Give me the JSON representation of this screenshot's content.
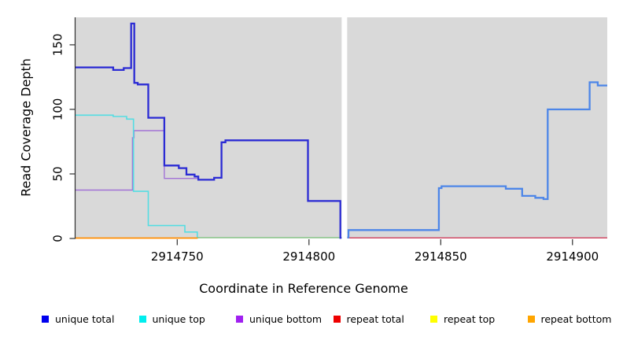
{
  "figure": {
    "background": "#ffffff",
    "plot_background": "#d9d9d9",
    "axis_color": "#2e2e2e",
    "gap_color": "#ffffff"
  },
  "chart_data": {
    "type": "line",
    "title": "",
    "xlabel": "Coordinate in Reference Genome",
    "ylabel": "Read Coverage Depth",
    "grid": false,
    "legend_position": "bottom",
    "xlim": [
      2914711.4,
      2914913.2
    ],
    "ylim": [
      0,
      171.3
    ],
    "x_ticks": [
      {
        "value": 2914750,
        "label": "2914750"
      },
      {
        "value": 2914800,
        "label": "2914800"
      },
      {
        "value": 2914850,
        "label": "2914850"
      },
      {
        "value": 2914900,
        "label": "2914900"
      }
    ],
    "y_ticks": [
      {
        "value": 0,
        "label": "0"
      },
      {
        "value": 50,
        "label": "50"
      },
      {
        "value": 100,
        "label": "100"
      },
      {
        "value": 150,
        "label": "150"
      }
    ],
    "no_data_gap": {
      "from": 2914812.4,
      "to": 2914814.5
    },
    "series": [
      {
        "name": "unique bottom",
        "color": "#a273d6",
        "width": 1.4,
        "steps": [
          [
            2914711.4,
            37.5
          ],
          [
            2914733.0,
            78
          ],
          [
            2914733.6,
            83.5
          ],
          [
            2914745.1,
            46.5
          ],
          [
            2914758.0,
            45.5
          ],
          [
            2914764.0,
            47
          ],
          [
            2914766.8,
            74.5
          ],
          [
            2914768.3,
            76
          ],
          [
            2914799.6,
            29
          ],
          [
            2914811.9,
            0.5
          ],
          [
            2914812.4,
            0.5
          ]
        ]
      },
      {
        "name": "unique top",
        "color": "#55dde2",
        "width": 1.6,
        "steps": [
          [
            2914711.4,
            95.5
          ],
          [
            2914725.7,
            94.5
          ],
          [
            2914730.8,
            92.5
          ],
          [
            2914733.4,
            36.5
          ],
          [
            2914739.0,
            10
          ],
          [
            2914752.9,
            5
          ],
          [
            2914757.6,
            0.7
          ],
          [
            2914758.5,
            0.7
          ]
        ]
      },
      {
        "name": "repeat bottom (baseline, left of gap)",
        "color": "#ff8c00",
        "width": 1.7,
        "steps": [
          [
            2914711.4,
            0.3
          ],
          [
            2914757.8,
            0.3
          ]
        ]
      },
      {
        "name": "baseline overlap (green, mid section)",
        "color": "#8fc98f",
        "width": 1.5,
        "steps": [
          [
            2914757.8,
            0.7
          ],
          [
            2914812.4,
            0.7
          ]
        ]
      },
      {
        "name": "repeat total (baseline, right of gap)",
        "color": "#d14b66",
        "width": 1.5,
        "steps": [
          [
            2914814.5,
            0.5
          ],
          [
            2914913.2,
            0.5
          ]
        ]
      },
      {
        "name": "unique total (left of gap)",
        "color": "#2b2bd4",
        "width": 2.3,
        "steps": [
          [
            2914711.4,
            132.5
          ],
          [
            2914725.7,
            130.5
          ],
          [
            2914729.7,
            132
          ],
          [
            2914732.5,
            166.5
          ],
          [
            2914733.7,
            120.5
          ],
          [
            2914735.0,
            119.3
          ],
          [
            2914739.0,
            93.5
          ],
          [
            2914745.1,
            56.5
          ],
          [
            2914750.6,
            54.5
          ],
          [
            2914753.5,
            49.5
          ],
          [
            2914756.6,
            48
          ],
          [
            2914758.0,
            45.5
          ],
          [
            2914764.0,
            47
          ],
          [
            2914766.8,
            74.5
          ],
          [
            2914768.3,
            76
          ],
          [
            2914799.6,
            29
          ],
          [
            2914811.9,
            0.5
          ],
          [
            2914812.4,
            0.5
          ]
        ]
      },
      {
        "name": "unique total (right of gap)",
        "color": "#4d86e8",
        "width": 2.3,
        "steps": [
          [
            2914814.5,
            0.8
          ],
          [
            2914815.0,
            6.5
          ],
          [
            2914849.3,
            39
          ],
          [
            2914850.3,
            40.5
          ],
          [
            2914874.7,
            38.5
          ],
          [
            2914880.9,
            33
          ],
          [
            2914885.9,
            31.5
          ],
          [
            2914889.0,
            30.5
          ],
          [
            2914890.6,
            100
          ],
          [
            2914906.5,
            121
          ],
          [
            2914909.6,
            118.5
          ],
          [
            2914913.2,
            118.5
          ]
        ]
      }
    ]
  },
  "legend": {
    "items": [
      {
        "label": "unique total",
        "color": "#0000ee"
      },
      {
        "label": "unique top",
        "color": "#00eeee"
      },
      {
        "label": "unique bottom",
        "color": "#a020f0"
      },
      {
        "label": "repeat total",
        "color": "#ee0000"
      },
      {
        "label": "repeat top",
        "color": "#ffff00"
      },
      {
        "label": "repeat bottom",
        "color": "#ffa500"
      }
    ]
  }
}
